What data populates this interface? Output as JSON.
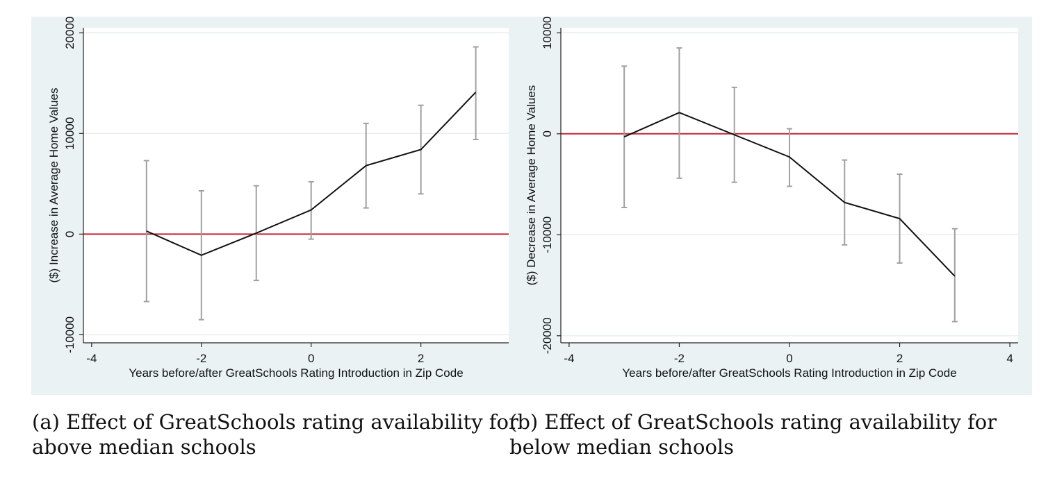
{
  "chart_data": [
    {
      "type": "line",
      "title": "",
      "xlabel": "Years before/after GreatSchools Rating Introduction in Zip Code",
      "ylabel": "($) Increase in Average Home Values",
      "xlim": [
        -4.15,
        3.6
      ],
      "ylim": [
        -10800,
        20500
      ],
      "xticks": [
        -4,
        -2,
        0,
        2
      ],
      "xtick_labels": [
        "-4",
        "-2",
        "0",
        "2"
      ],
      "yticks": [
        -10000,
        0,
        10000,
        20000
      ],
      "ytick_labels": [
        "-10000",
        "0",
        "10000",
        "20000"
      ],
      "grid": true,
      "reference_line": {
        "y": 0,
        "color": "#c0263a"
      },
      "series": [
        {
          "x": [
            -3,
            -2,
            -1,
            0,
            1,
            2,
            3
          ],
          "y": [
            300,
            -2100,
            100,
            2400,
            6800,
            8400,
            14100
          ],
          "ci_low": [
            -6700,
            -8500,
            -4600,
            -500,
            2600,
            4000,
            9400
          ],
          "ci_high": [
            7300,
            4300,
            4800,
            5200,
            11000,
            12800,
            18600
          ]
        }
      ],
      "caption": "(a) Effect of GreatSchools rating availability for above median schools"
    },
    {
      "type": "line",
      "title": "",
      "xlabel": "Years before/after GreatSchools Rating Introduction in Zip Code",
      "ylabel": "($) Decrease in Average Home Values",
      "xlim": [
        -4.15,
        4.15
      ],
      "ylim": [
        -20700,
        10500
      ],
      "xticks": [
        -4,
        -2,
        0,
        2,
        4
      ],
      "xtick_labels": [
        "-4",
        "-2",
        "0",
        "2",
        "4"
      ],
      "yticks": [
        -20000,
        -10000,
        0,
        10000
      ],
      "ytick_labels": [
        "-20000",
        "-10000",
        "0",
        "10000"
      ],
      "grid": true,
      "reference_line": {
        "y": 0,
        "color": "#c0263a"
      },
      "series": [
        {
          "x": [
            -3,
            -2,
            -1,
            0,
            1,
            2,
            3
          ],
          "y": [
            -300,
            2100,
            -100,
            -2300,
            -6800,
            -8400,
            -14100
          ],
          "ci_low": [
            -7300,
            -4400,
            -4800,
            -5200,
            -11000,
            -12800,
            -18600
          ],
          "ci_high": [
            6700,
            8500,
            4600,
            500,
            -2600,
            -4000,
            -9400
          ]
        }
      ],
      "caption": "(b) Effect of GreatSchools rating availability for below median schools"
    }
  ],
  "colors": {
    "panel_background": "#eaf2f3",
    "plot_background": "#ffffff",
    "grid": "#e8eeef",
    "line": "#111111",
    "error_bar": "#a0a0a0",
    "reference": "#c0263a"
  }
}
